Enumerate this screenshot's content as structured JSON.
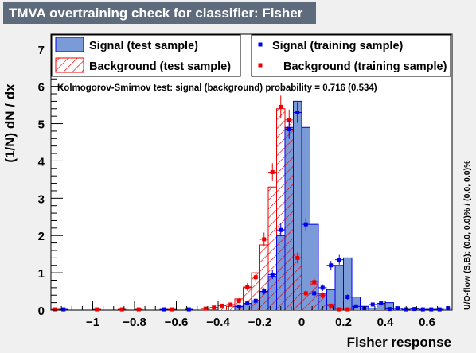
{
  "title": "TMVA overtraining check for classifier: Fisher",
  "ks_text": "Kolmogorov-Smirnov test: signal (background) probability = 0.716 (0.534)",
  "side_label": "U/O-flow (S,B): (0.0, 0.0)% / (0.0, 0.0)%",
  "legend": {
    "signal_test": "Signal (test sample)",
    "signal_train": "Signal (training sample)",
    "background_test": "Background (test sample)",
    "background_train": "Background (training sample)"
  },
  "colors": {
    "signal_fill": "#7b9bd8",
    "signal_line": "#0000ee",
    "background": "#ee0000",
    "title_bg": "#5d6b7d"
  },
  "chart_data": {
    "type": "bar",
    "title": "TMVA overtraining check for classifier: Fisher",
    "xlabel": "Fisher response",
    "ylabel": "(1/N) dN / dx",
    "xlim": [
      -1.2,
      0.72
    ],
    "ylim": [
      0,
      7.4
    ],
    "x_ticks": [
      -1,
      -0.8,
      -0.6,
      -0.4,
      -0.2,
      0,
      0.2,
      0.4,
      0.6
    ],
    "x_tick_labels": [
      "−1",
      "−0.8",
      "−0.6",
      "−0.4",
      "−0.2",
      "0",
      "0.2",
      "0.4",
      "0.6"
    ],
    "y_ticks": [
      0,
      1,
      2,
      3,
      4,
      5,
      6,
      7
    ],
    "bin_edges": [
      -1.2,
      -1.16,
      -1.12,
      -1.08,
      -1.04,
      -1.0,
      -0.96,
      -0.92,
      -0.88,
      -0.84,
      -0.8,
      -0.76,
      -0.72,
      -0.68,
      -0.64,
      -0.6,
      -0.56,
      -0.52,
      -0.48,
      -0.44,
      -0.4,
      -0.36,
      -0.32,
      -0.28,
      -0.24,
      -0.2,
      -0.16,
      -0.12,
      -0.08,
      -0.04,
      0.0,
      0.04,
      0.08,
      0.12,
      0.16,
      0.2,
      0.24,
      0.28,
      0.32,
      0.36,
      0.4,
      0.44,
      0.48,
      0.52,
      0.56,
      0.6,
      0.64,
      0.68,
      0.72
    ],
    "bin_centers": [
      -1.18,
      -1.14,
      -1.1,
      -1.06,
      -1.02,
      -0.98,
      -0.94,
      -0.9,
      -0.86,
      -0.82,
      -0.78,
      -0.74,
      -0.7,
      -0.66,
      -0.62,
      -0.58,
      -0.54,
      -0.5,
      -0.46,
      -0.42,
      -0.38,
      -0.34,
      -0.3,
      -0.26,
      -0.22,
      -0.18,
      -0.14,
      -0.1,
      -0.06,
      -0.02,
      0.02,
      0.06,
      0.1,
      0.14,
      0.18,
      0.22,
      0.26,
      0.3,
      0.34,
      0.38,
      0.42,
      0.46,
      0.5,
      0.54,
      0.58,
      0.62,
      0.66,
      0.7
    ],
    "series": [
      {
        "name": "Signal (test sample)",
        "style": "filled-histogram",
        "values": [
          0,
          0,
          0,
          0,
          0,
          0,
          0,
          0,
          0,
          0,
          0,
          0,
          0,
          0,
          0,
          0,
          0,
          0,
          0,
          0,
          0,
          0,
          0.1,
          0.15,
          0.25,
          0.5,
          0.9,
          2.0,
          4.9,
          5.6,
          4.9,
          2.3,
          0.45,
          0.55,
          1.2,
          1.4,
          0.35,
          0.1,
          0.05,
          0.15,
          0.2,
          0.05,
          0,
          0,
          0,
          0,
          0,
          0
        ]
      },
      {
        "name": "Background (test sample)",
        "style": "hatched-histogram",
        "values": [
          0,
          0,
          0,
          0,
          0,
          0,
          0,
          0,
          0,
          0,
          0,
          0,
          0,
          0,
          0,
          0,
          0,
          0,
          0,
          0,
          0.05,
          0.1,
          0.3,
          0.6,
          1.0,
          1.75,
          3.3,
          5.4,
          5.05,
          1.5,
          0.45,
          0.7,
          0.35,
          0.15,
          0.05,
          0,
          0,
          0,
          0,
          0,
          0,
          0,
          0,
          0,
          0,
          0,
          0,
          0
        ]
      },
      {
        "name": "Signal (training sample)",
        "style": "points",
        "x": [
          -1.14,
          -0.66,
          -0.54,
          -0.3,
          -0.26,
          -0.22,
          -0.18,
          -0.14,
          -0.1,
          -0.06,
          -0.02,
          0.02,
          0.06,
          0.1,
          0.14,
          0.18,
          0.22,
          0.26,
          0.3,
          0.34,
          0.38,
          0.42,
          0.46,
          0.5,
          0.54,
          0.58,
          0.62,
          0.66,
          0.7
        ],
        "y": [
          0.02,
          0.02,
          0.02,
          0.1,
          0.18,
          0.25,
          0.5,
          0.95,
          2.15,
          4.85,
          5.3,
          2.3,
          0.45,
          0.6,
          1.2,
          1.35,
          0.35,
          0.1,
          0.05,
          0.15,
          0.18,
          0.03,
          0.05,
          0.02,
          0.03,
          0.02,
          0.02,
          0.02,
          0.05
        ],
        "err": [
          0.02,
          0.02,
          0.02,
          0.04,
          0.05,
          0.06,
          0.09,
          0.12,
          0.17,
          0.26,
          0.28,
          0.17,
          0.07,
          0.09,
          0.12,
          0.13,
          0.07,
          0.04,
          0.03,
          0.04,
          0.05,
          0.02,
          0.03,
          0.02,
          0.02,
          0.02,
          0.02,
          0.02,
          0.03
        ]
      },
      {
        "name": "Background (training sample)",
        "style": "points",
        "x": [
          -1.18,
          -0.98,
          -0.86,
          -0.78,
          -0.62,
          -0.46,
          -0.42,
          -0.38,
          -0.34,
          -0.3,
          -0.26,
          -0.22,
          -0.18,
          -0.14,
          -0.1,
          -0.06,
          -0.02,
          0.02,
          0.06,
          0.1,
          0.14,
          0.18,
          0.22
        ],
        "y": [
          0.02,
          0.02,
          0.02,
          0.02,
          0.02,
          0.04,
          0.07,
          0.12,
          0.15,
          0.25,
          0.62,
          0.88,
          1.9,
          3.7,
          5.45,
          5.1,
          1.4,
          0.45,
          0.75,
          0.4,
          0.12,
          0.02,
          0.02
        ],
        "err": [
          0.02,
          0.02,
          0.02,
          0.02,
          0.02,
          0.03,
          0.04,
          0.05,
          0.05,
          0.07,
          0.1,
          0.12,
          0.18,
          0.24,
          0.3,
          0.28,
          0.15,
          0.08,
          0.1,
          0.08,
          0.04,
          0.02,
          0.02
        ]
      }
    ],
    "legend_position": "top",
    "grid": false
  }
}
